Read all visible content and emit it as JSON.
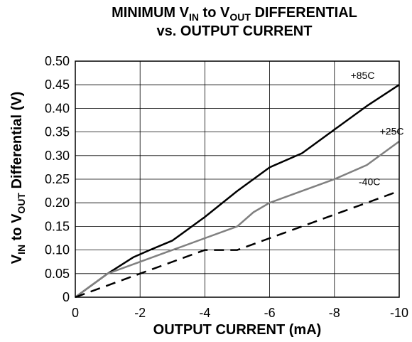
{
  "chart_data": {
    "type": "line",
    "title_line1": {
      "a": "MINIMUM V",
      "a_sub": "IN",
      "b": " to V",
      "b_sub": "OUT",
      "c": " DIFFERENTIAL"
    },
    "title_line2": "vs. OUTPUT CURRENT",
    "xlabel": "OUTPUT CURRENT (mA)",
    "ylabel": {
      "a": "V",
      "a_sub": "IN",
      "b": " to V",
      "b_sub": "OUT",
      "c": " Differential (V)"
    },
    "x_ticks": [
      "0",
      "-2",
      "-4",
      "-6",
      "-8",
      "-10"
    ],
    "y_ticks": [
      "0",
      "0.05",
      "0.10",
      "0.15",
      "0.20",
      "0.25",
      "0.30",
      "0.35",
      "0.40",
      "0.45",
      "0.50"
    ],
    "xlim": [
      0,
      -10
    ],
    "ylim": [
      0,
      0.5
    ],
    "grid": true,
    "series": [
      {
        "name": "+85C",
        "color": "#000000",
        "dash": "solid",
        "x": [
          0,
          -1,
          -1.8,
          -2.3,
          -3,
          -3.5,
          -4,
          -5,
          -6,
          -7,
          -7.5,
          -8,
          -9,
          -10
        ],
        "y": [
          0,
          0.05,
          0.085,
          0.1,
          0.12,
          0.145,
          0.17,
          0.225,
          0.275,
          0.305,
          0.33,
          0.355,
          0.405,
          0.45
        ]
      },
      {
        "name": "+25C",
        "color": "#808080",
        "dash": "solid",
        "x": [
          0,
          -1,
          -2,
          -3,
          -4,
          -5,
          -5.5,
          -6,
          -7,
          -8,
          -9,
          -10
        ],
        "y": [
          0,
          0.05,
          0.075,
          0.1,
          0.125,
          0.15,
          0.18,
          0.2,
          0.225,
          0.25,
          0.28,
          0.33
        ]
      },
      {
        "name": "-40C",
        "color": "#000000",
        "dash": "dashed",
        "x": [
          0,
          -2,
          -4,
          -5,
          -6,
          -8,
          -10
        ],
        "y": [
          0,
          0.05,
          0.1,
          0.1,
          0.125,
          0.175,
          0.225
        ]
      }
    ],
    "series_labels": [
      "+85C",
      "+25C",
      "-40C"
    ]
  }
}
